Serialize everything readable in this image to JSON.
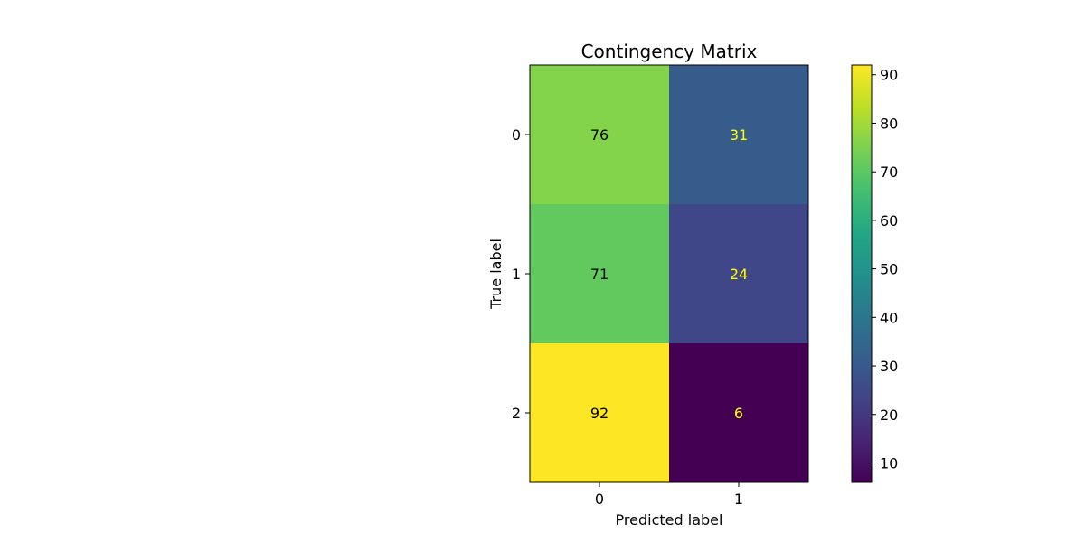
{
  "chart_data": {
    "type": "heatmap",
    "title": "Contingency Matrix",
    "xlabel": "Predicted label",
    "ylabel": "True label",
    "x_categories": [
      "0",
      "1"
    ],
    "y_categories": [
      "0",
      "1",
      "2"
    ],
    "values": [
      [
        76,
        31
      ],
      [
        71,
        24
      ],
      [
        92,
        6
      ]
    ],
    "colormap": "viridis",
    "color_range": [
      6,
      92
    ],
    "colorbar_ticks": [
      10,
      20,
      30,
      40,
      50,
      60,
      70,
      80,
      90
    ],
    "grid": false,
    "colorbar": "right",
    "label_colors": {
      "dark_cell": "#000000",
      "light_cell": "#ffff00"
    }
  }
}
